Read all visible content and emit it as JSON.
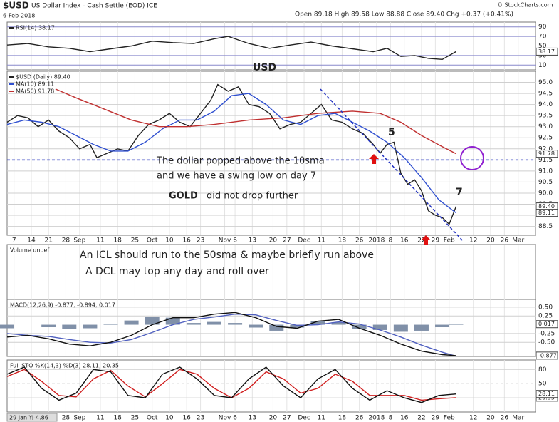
{
  "header": {
    "symbol": "$USD",
    "name": "US Dollar Index - Cash Settle (EOD) ICE",
    "date": "6-Feb-2018",
    "ohlc": "Open 89.18 High 89.58 Low 88.88 Close 89.40 Chg +0.37 (+0.41%)",
    "source": "© StockCharts.com"
  },
  "cursor_label": "29 Jan Y:-4.86",
  "chart_data": [
    {
      "type": "line",
      "ylim": [
        0,
        100
      ],
      "yticks": [
        90,
        70,
        50,
        30,
        10
      ],
      "grid": true,
      "series": [
        {
          "name": "RSI(14) 38.17",
          "color": "#222222",
          "end_label": "38.17",
          "x": [
            0,
            6,
            12,
            18,
            24,
            30,
            36,
            42,
            48,
            54,
            60,
            64,
            70,
            76,
            82,
            88,
            94,
            100,
            106,
            110,
            114,
            118,
            122,
            126,
            130
          ],
          "values": [
            52,
            55,
            48,
            45,
            38,
            44,
            50,
            60,
            57,
            55,
            65,
            70,
            55,
            45,
            52,
            58,
            50,
            44,
            38,
            45,
            28,
            30,
            24,
            22,
            38.17
          ]
        }
      ]
    },
    {
      "type": "line",
      "ylim": [
        88.1,
        95.5
      ],
      "xlim": [
        0,
        153
      ],
      "grid": true,
      "hline": 91.5,
      "yticks": [
        {
          "value": 95,
          "label": "95.0"
        },
        {
          "value": 94.5,
          "label": "94.5"
        },
        {
          "value": 94,
          "label": "94.0"
        },
        {
          "value": 93.5,
          "label": "93.5"
        },
        {
          "value": 93,
          "label": "93.0"
        },
        {
          "value": 92.5,
          "label": "92.5"
        },
        {
          "value": 92,
          "label": "92.0"
        },
        {
          "value": 91.5,
          "label": "91.5"
        },
        {
          "value": 91,
          "label": "91.0"
        },
        {
          "value": 90.5,
          "label": "90.5"
        },
        {
          "value": 90,
          "label": "90.0"
        },
        {
          "value": 89.5,
          "label": "89.5"
        },
        {
          "value": 89,
          "label": "89.0"
        },
        {
          "value": 88.5,
          "label": "88.5"
        }
      ],
      "xticks": [
        {
          "value": 2,
          "label": "7"
        },
        {
          "value": 7,
          "label": "14"
        },
        {
          "value": 12,
          "label": "21"
        },
        {
          "value": 17,
          "label": "28"
        },
        {
          "value": 21,
          "label": "Sep"
        },
        {
          "value": 27,
          "label": "11"
        },
        {
          "value": 32,
          "label": "18"
        },
        {
          "value": 37,
          "label": "25"
        },
        {
          "value": 42,
          "label": "Oct"
        },
        {
          "value": 47,
          "label": "10"
        },
        {
          "value": 52,
          "label": "16"
        },
        {
          "value": 56,
          "label": "23"
        },
        {
          "value": 63,
          "label": "Nov"
        },
        {
          "value": 66,
          "label": "6"
        },
        {
          "value": 71,
          "label": "13"
        },
        {
          "value": 77,
          "label": "20"
        },
        {
          "value": 81,
          "label": "27"
        },
        {
          "value": 86,
          "label": "Dec"
        },
        {
          "value": 91,
          "label": "11"
        },
        {
          "value": 97,
          "label": "18"
        },
        {
          "value": 102,
          "label": "26"
        },
        {
          "value": 107,
          "label": "2018"
        },
        {
          "value": 111,
          "label": "8"
        },
        {
          "value": 115,
          "label": "16"
        },
        {
          "value": 120,
          "label": "22"
        },
        {
          "value": 124,
          "label": "29"
        },
        {
          "value": 128,
          "label": "Feb"
        },
        {
          "value": 135,
          "label": "12"
        },
        {
          "value": 140,
          "label": "20"
        },
        {
          "value": 144,
          "label": "26"
        },
        {
          "value": 148,
          "label": "Mar"
        }
      ],
      "series": [
        {
          "name": "$USD (Daily) 89.40",
          "color": "#222222",
          "end_label": "89.40",
          "x": [
            0,
            3,
            6,
            9,
            12,
            15,
            18,
            21,
            24,
            26,
            29,
            32,
            35,
            38,
            41,
            44,
            47,
            50,
            53,
            56,
            59,
            61,
            64,
            67,
            70,
            73,
            76,
            79,
            82,
            85,
            88,
            91,
            94,
            97,
            100,
            103,
            106,
            108,
            110,
            112,
            114,
            116,
            118,
            120,
            122,
            124,
            126,
            128,
            130
          ],
          "values": [
            93.2,
            93.5,
            93.4,
            93.0,
            93.3,
            92.8,
            92.5,
            92.0,
            92.2,
            91.6,
            91.8,
            92.0,
            91.9,
            92.6,
            93.1,
            93.3,
            93.6,
            93.2,
            93.0,
            93.6,
            94.2,
            94.9,
            94.6,
            94.8,
            94.0,
            93.9,
            93.6,
            92.9,
            93.1,
            93.2,
            93.6,
            94.0,
            93.3,
            93.2,
            92.9,
            92.7,
            92.2,
            91.8,
            92.2,
            92.3,
            90.9,
            90.4,
            90.6,
            90.1,
            89.2,
            89.0,
            88.9,
            88.6,
            89.4
          ]
        },
        {
          "name": "MA(10) 89.11",
          "color": "#3050d0",
          "end_label": "89.11",
          "x": [
            0,
            5,
            10,
            15,
            20,
            25,
            30,
            35,
            40,
            45,
            50,
            55,
            60,
            65,
            70,
            75,
            80,
            85,
            90,
            95,
            100,
            105,
            110,
            115,
            120,
            125,
            130
          ],
          "values": [
            93.1,
            93.3,
            93.2,
            93.0,
            92.6,
            92.2,
            91.9,
            91.9,
            92.3,
            92.9,
            93.3,
            93.3,
            93.7,
            94.4,
            94.5,
            94.0,
            93.3,
            93.1,
            93.5,
            93.6,
            93.2,
            92.8,
            92.3,
            91.6,
            90.7,
            89.7,
            89.11
          ]
        },
        {
          "name": "MA(50) 91.78",
          "color": "#c03030",
          "end_label": "91.78",
          "x": [
            14,
            20,
            28,
            36,
            44,
            52,
            60,
            70,
            80,
            90,
            100,
            108,
            114,
            120,
            126,
            130
          ],
          "values": [
            94.7,
            94.3,
            93.8,
            93.3,
            93.0,
            93.0,
            93.1,
            93.3,
            93.4,
            93.6,
            93.7,
            93.6,
            93.2,
            92.6,
            92.1,
            91.78
          ]
        }
      ],
      "annotations": [
        "USD",
        "The dollar popped above the 10sma",
        "and we have a swing low on day 7",
        "GOLD",
        "did not drop further",
        "5",
        "7"
      ]
    },
    {
      "type": "text",
      "title": "Volume undef",
      "annotations": [
        "An ICL should run to the 50sma & maybe briefly run above",
        "A DCL may top any day and roll over"
      ]
    },
    {
      "type": "line",
      "title": "MACD(12,26,9) -0.877, -0.894, 0.017",
      "ylim": [
        -0.9,
        0.72
      ],
      "grid": true,
      "yticks": [
        {
          "value": 0.5,
          "label": "0.50"
        },
        {
          "value": 0.25,
          "label": "0.25"
        },
        {
          "value": -0.25,
          "label": "-0.25"
        },
        {
          "value": -0.5,
          "label": "-0.50"
        }
      ],
      "series": [
        {
          "style": "histogram",
          "color": "#8090a8",
          "end_label": "0.017",
          "x": [
            0,
            6,
            12,
            18,
            24,
            30,
            36,
            42,
            48,
            54,
            60,
            66,
            72,
            78,
            84,
            90,
            96,
            102,
            108,
            114,
            120,
            126,
            130
          ],
          "values": [
            -0.1,
            0,
            -0.07,
            -0.13,
            -0.1,
            0.02,
            0.12,
            0.22,
            0.2,
            0.05,
            0.08,
            0.05,
            -0.08,
            -0.17,
            -0.08,
            0.1,
            0.07,
            -0.12,
            -0.15,
            -0.2,
            -0.17,
            -0.07,
            0.017
          ]
        },
        {
          "color": "#5060c0",
          "x": [
            0,
            6,
            12,
            18,
            24,
            30,
            36,
            42,
            48,
            54,
            60,
            66,
            72,
            78,
            84,
            90,
            96,
            102,
            108,
            114,
            120,
            126,
            130
          ],
          "values": [
            -0.25,
            -0.3,
            -0.33,
            -0.42,
            -0.5,
            -0.52,
            -0.42,
            -0.22,
            0.0,
            0.15,
            0.22,
            0.3,
            0.28,
            0.12,
            -0.02,
            0.0,
            0.08,
            0.02,
            -0.15,
            -0.35,
            -0.58,
            -0.78,
            -0.894
          ]
        },
        {
          "color": "#111111",
          "end_label": "-0.877",
          "x": [
            0,
            6,
            12,
            18,
            24,
            30,
            36,
            42,
            48,
            54,
            60,
            66,
            72,
            78,
            84,
            90,
            96,
            102,
            108,
            114,
            120,
            126,
            130
          ],
          "values": [
            -0.35,
            -0.3,
            -0.4,
            -0.55,
            -0.6,
            -0.5,
            -0.3,
            0.0,
            0.2,
            0.2,
            0.3,
            0.35,
            0.2,
            -0.05,
            -0.1,
            0.1,
            0.15,
            -0.1,
            -0.3,
            -0.55,
            -0.75,
            -0.85,
            -0.877
          ]
        }
      ]
    },
    {
      "type": "line",
      "title": "Full STO %K(14,3) %D(3) 28.11, 20.35",
      "ylim": [
        -10,
        100
      ],
      "grid": true,
      "yticks": [
        80,
        50,
        20
      ],
      "series": [
        {
          "color": "#d02020",
          "end_label": "20.35",
          "x": [
            0,
            5,
            10,
            15,
            20,
            25,
            30,
            35,
            40,
            45,
            50,
            55,
            60,
            65,
            70,
            75,
            80,
            85,
            90,
            95,
            100,
            105,
            110,
            115,
            120,
            125,
            130
          ],
          "values": [
            65,
            80,
            55,
            25,
            22,
            60,
            78,
            45,
            22,
            50,
            80,
            70,
            40,
            20,
            40,
            75,
            60,
            30,
            40,
            70,
            55,
            25,
            25,
            25,
            15,
            18,
            20.35
          ]
        },
        {
          "color": "#111111",
          "end_label": "28.11",
          "x": [
            0,
            5,
            10,
            15,
            20,
            25,
            30,
            35,
            40,
            45,
            50,
            55,
            60,
            65,
            70,
            75,
            80,
            85,
            90,
            95,
            100,
            105,
            110,
            115,
            120,
            125,
            130
          ],
          "values": [
            70,
            85,
            40,
            15,
            30,
            80,
            75,
            25,
            20,
            70,
            85,
            60,
            25,
            20,
            60,
            85,
            45,
            20,
            60,
            80,
            40,
            15,
            35,
            20,
            10,
            25,
            28.11
          ]
        }
      ]
    }
  ]
}
